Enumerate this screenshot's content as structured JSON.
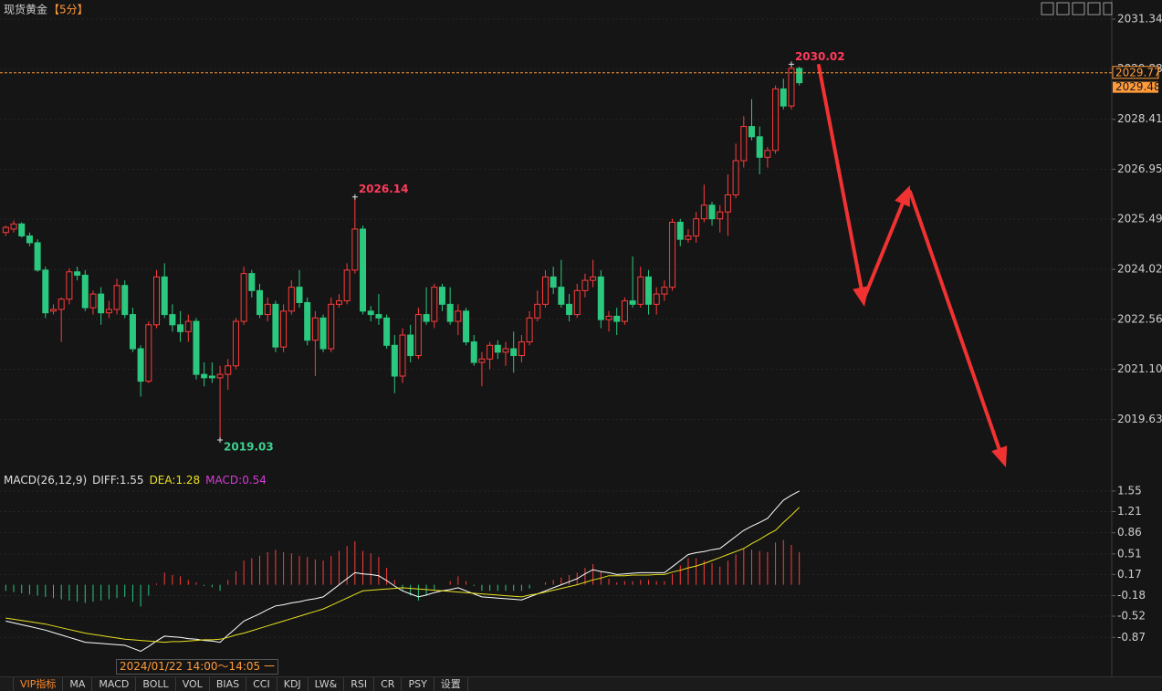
{
  "window": {
    "title": "现货黄金",
    "period": "【5分】",
    "date_label": "2024/01/22 14:00～14:05 一",
    "tabs": [
      "VIP指标",
      "MA",
      "MACD",
      "BOLL",
      "VOL",
      "BIAS",
      "CCI",
      "KDJ",
      "LW&",
      "RSI",
      "CR",
      "PSY",
      "设置"
    ]
  },
  "chart_data": {
    "type": "candlestick",
    "up_color": "#ff3b3b",
    "down_color": "#2bc97f",
    "open": [
      2025.1,
      2025.2,
      2025.35,
      2025.0,
      2024.8,
      2024.0,
      2022.8,
      2022.85,
      2023.15,
      2023.95,
      2023.85,
      2022.9,
      2023.3,
      2022.75,
      2022.85,
      2023.55,
      2022.7,
      2021.7,
      2020.75,
      2022.4,
      2023.8,
      2022.7,
      2022.4,
      2022.2,
      2022.5,
      2020.95,
      2020.9,
      2020.85,
      2020.95,
      2021.2,
      2022.5,
      2023.9,
      2023.4,
      2022.7,
      2023.0,
      2021.75,
      2022.8,
      2023.5,
      2023.05,
      2021.95,
      2022.6,
      2021.7,
      2023.0,
      2023.1,
      2024.0,
      2025.2,
      2022.8,
      2022.7,
      2022.6,
      2021.8,
      2020.9,
      2022.1,
      2021.5,
      2022.7,
      2022.5,
      2023.5,
      2023.0,
      2022.5,
      2022.8,
      2021.9,
      2021.3,
      2021.4,
      2021.8,
      2021.6,
      2021.7,
      2021.5,
      2021.9,
      2022.6,
      2023.0,
      2023.8,
      2023.5,
      2023.0,
      2022.7,
      2023.4,
      2023.7,
      2023.8,
      2022.55,
      2022.65,
      2022.5,
      2023.1,
      2023.0,
      2023.8,
      2023.0,
      2023.3,
      2023.5,
      2025.4,
      2024.9,
      2025.0,
      2025.5,
      2025.9,
      2025.5,
      2025.7,
      2026.2,
      2027.2,
      2028.2,
      2027.9,
      2027.3,
      2027.5,
      2029.3,
      2028.8,
      2029.9
    ],
    "high": [
      2025.3,
      2025.45,
      2025.4,
      2025.1,
      2024.9,
      2024.1,
      2023.0,
      2023.2,
      2024.05,
      2024.1,
      2024.0,
      2023.4,
      2023.5,
      2023.1,
      2023.75,
      2023.7,
      2022.9,
      2021.8,
      2022.5,
      2024.0,
      2024.2,
      2023.0,
      2022.8,
      2022.7,
      2022.6,
      2021.3,
      2021.3,
      2021.2,
      2021.4,
      2022.6,
      2024.1,
      2024.0,
      2023.6,
      2023.2,
      2023.1,
      2023.0,
      2023.7,
      2024.0,
      2023.2,
      2022.8,
      2022.7,
      2023.2,
      2023.3,
      2024.2,
      2026.14,
      2025.3,
      2022.95,
      2023.3,
      2022.7,
      2022.1,
      2022.3,
      2022.4,
      2022.9,
      2023.5,
      2023.6,
      2023.6,
      2023.5,
      2023.0,
      2022.9,
      2022.1,
      2021.6,
      2021.9,
      2021.95,
      2021.9,
      2022.2,
      2022.1,
      2022.8,
      2023.4,
      2024.0,
      2024.1,
      2024.3,
      2023.3,
      2023.6,
      2023.9,
      2024.3,
      2024.0,
      2022.8,
      2022.9,
      2023.2,
      2024.4,
      2024.1,
      2024.0,
      2023.5,
      2023.7,
      2025.5,
      2025.5,
      2025.2,
      2025.7,
      2026.5,
      2026.0,
      2025.9,
      2026.8,
      2027.7,
      2028.5,
      2029.0,
      2028.2,
      2027.6,
      2029.4,
      2029.6,
      2030.02,
      2029.95
    ],
    "low": [
      2025.0,
      2025.1,
      2024.95,
      2024.7,
      2023.95,
      2022.6,
      2022.7,
      2021.9,
      2023.0,
      2023.7,
      2022.8,
      2022.7,
      2022.4,
      2022.6,
      2022.7,
      2022.6,
      2021.6,
      2020.3,
      2020.7,
      2022.3,
      2022.6,
      2022.2,
      2021.9,
      2021.9,
      2020.8,
      2020.6,
      2020.7,
      2019.03,
      2020.5,
      2021.1,
      2022.4,
      2023.2,
      2022.6,
      2022.5,
      2021.6,
      2021.6,
      2022.7,
      2022.9,
      2021.8,
      2020.9,
      2021.6,
      2021.6,
      2022.9,
      2023.0,
      2023.9,
      2022.7,
      2022.5,
      2022.4,
      2021.7,
      2020.4,
      2020.7,
      2021.3,
      2021.4,
      2022.4,
      2022.3,
      2022.8,
      2022.4,
      2022.1,
      2021.8,
      2021.2,
      2020.6,
      2021.1,
      2021.4,
      2021.2,
      2021.0,
      2021.3,
      2021.8,
      2022.5,
      2022.9,
      2023.3,
      2022.9,
      2022.5,
      2022.6,
      2023.2,
      2023.5,
      2022.3,
      2022.2,
      2022.1,
      2022.4,
      2022.9,
      2022.9,
      2022.7,
      2022.7,
      2023.1,
      2023.4,
      2024.7,
      2024.8,
      2024.8,
      2025.4,
      2025.3,
      2025.1,
      2025.0,
      2026.1,
      2027.0,
      2027.8,
      2026.8,
      2027.0,
      2027.4,
      2028.7,
      2028.7,
      2029.4
    ],
    "close": [
      2025.25,
      2025.35,
      2025.0,
      2024.8,
      2024.0,
      2022.75,
      2022.85,
      2023.15,
      2023.95,
      2023.85,
      2022.9,
      2023.3,
      2022.75,
      2022.85,
      2023.55,
      2022.7,
      2021.7,
      2020.75,
      2022.4,
      2023.8,
      2022.7,
      2022.4,
      2022.2,
      2022.5,
      2020.95,
      2020.85,
      2020.85,
      2020.95,
      2021.2,
      2022.5,
      2023.9,
      2023.4,
      2022.7,
      2023.0,
      2021.75,
      2022.8,
      2023.5,
      2023.05,
      2021.95,
      2022.6,
      2021.7,
      2023.0,
      2023.1,
      2024.0,
      2025.2,
      2022.8,
      2022.7,
      2022.6,
      2021.8,
      2020.9,
      2022.1,
      2021.5,
      2022.7,
      2022.5,
      2023.5,
      2023.0,
      2022.5,
      2022.8,
      2021.9,
      2021.3,
      2021.4,
      2021.8,
      2021.6,
      2021.7,
      2021.5,
      2021.9,
      2022.6,
      2023.0,
      2023.8,
      2023.5,
      2023.0,
      2022.7,
      2023.4,
      2023.7,
      2023.8,
      2022.55,
      2022.65,
      2022.5,
      2023.1,
      2023.0,
      2023.8,
      2023.0,
      2023.3,
      2023.5,
      2025.4,
      2024.9,
      2025.0,
      2025.5,
      2025.9,
      2025.5,
      2025.7,
      2026.2,
      2027.2,
      2028.2,
      2027.9,
      2027.3,
      2027.5,
      2029.3,
      2028.8,
      2029.9,
      2029.48
    ],
    "ylim": [
      2018.15,
      2031.9
    ],
    "yticks": [
      2031.34,
      2029.88,
      2028.41,
      2026.95,
      2025.49,
      2024.02,
      2022.56,
      {
        "value": 2021.1,
        "label": "2021.10"
      },
      2019.63
    ],
    "price_line": 2029.77,
    "price_line_color": "#ff9a3a",
    "annotations": [
      {
        "at": 99,
        "value": 2030.02,
        "color": "#ff3b5c"
      },
      {
        "at": 44,
        "value": 2026.14,
        "color": "#ff3b5c"
      },
      {
        "at": 27,
        "value": 2019.03,
        "color": "#3ecf8e"
      }
    ],
    "macd": {
      "type": "macd",
      "title": "MACD(26,12,9)",
      "separator": ":",
      "ylim": [
        -1.5,
        1.67
      ],
      "yticks": [
        1.55,
        1.21,
        0.86,
        0.51,
        0.17,
        -0.18,
        -0.52,
        -0.87
      ],
      "up_color": "#ff3b3b",
      "down_color": "#2bc97f",
      "series": [
        {
          "name": "DIFF",
          "color": "#ffffff",
          "values": [
            -0.6,
            -0.63,
            -0.66,
            -0.69,
            -0.72,
            -0.75,
            -0.79,
            -0.83,
            -0.87,
            -0.91,
            -0.95,
            -0.96,
            -0.97,
            -0.98,
            -0.99,
            -1.0,
            -1.05,
            -1.1,
            -1.02,
            -0.93,
            -0.85,
            -0.86,
            -0.87,
            -0.89,
            -0.9,
            -0.92,
            -0.93,
            -0.95,
            -0.83,
            -0.72,
            -0.6,
            -0.54,
            -0.48,
            -0.41,
            -0.35,
            -0.33,
            -0.3,
            -0.28,
            -0.25,
            -0.23,
            -0.2,
            -0.1,
            0.0,
            0.1,
            0.2,
            0.18,
            0.17,
            0.15,
            0.07,
            -0.02,
            -0.1,
            -0.15,
            -0.2,
            -0.17,
            -0.13,
            -0.1,
            -0.08,
            -0.05,
            -0.1,
            -0.15,
            -0.2,
            -0.21,
            -0.22,
            -0.23,
            -0.24,
            -0.25,
            -0.2,
            -0.15,
            -0.1,
            -0.05,
            0.0,
            0.05,
            0.1,
            0.18,
            0.25,
            0.22,
            0.2,
            0.17,
            0.18,
            0.19,
            0.2,
            0.2,
            0.2,
            0.2,
            0.3,
            0.4,
            0.5,
            0.53,
            0.55,
            0.58,
            0.6,
            0.7,
            0.8,
            0.9,
            0.97,
            1.03,
            1.1,
            1.25,
            1.4,
            1.48,
            1.55
          ]
        },
        {
          "name": "DEA",
          "color": "#e8e020",
          "values": [
            -0.55,
            -0.57,
            -0.59,
            -0.61,
            -0.63,
            -0.65,
            -0.68,
            -0.71,
            -0.74,
            -0.77,
            -0.8,
            -0.82,
            -0.84,
            -0.86,
            -0.88,
            -0.9,
            -0.91,
            -0.92,
            -0.93,
            -0.94,
            -0.95,
            -0.94,
            -0.94,
            -0.93,
            -0.92,
            -0.91,
            -0.91,
            -0.9,
            -0.87,
            -0.83,
            -0.8,
            -0.76,
            -0.72,
            -0.68,
            -0.64,
            -0.6,
            -0.56,
            -0.52,
            -0.48,
            -0.44,
            -0.4,
            -0.34,
            -0.28,
            -0.22,
            -0.16,
            -0.1,
            -0.09,
            -0.08,
            -0.07,
            -0.06,
            -0.05,
            -0.06,
            -0.07,
            -0.08,
            -0.09,
            -0.1,
            -0.11,
            -0.12,
            -0.13,
            -0.14,
            -0.15,
            -0.16,
            -0.17,
            -0.18,
            -0.19,
            -0.2,
            -0.17,
            -0.15,
            -0.12,
            -0.09,
            -0.06,
            -0.03,
            0.0,
            0.04,
            0.08,
            0.11,
            0.15,
            0.15,
            0.15,
            0.16,
            0.16,
            0.16,
            0.17,
            0.17,
            0.21,
            0.24,
            0.28,
            0.31,
            0.35,
            0.4,
            0.45,
            0.5,
            0.55,
            0.6,
            0.68,
            0.75,
            0.83,
            0.9,
            1.03,
            1.15,
            1.28
          ]
        },
        {
          "name": "MACD",
          "color": "#d63cd6",
          "values": [
            -0.1,
            -0.12,
            -0.14,
            -0.16,
            -0.18,
            -0.2,
            -0.22,
            -0.24,
            -0.26,
            -0.28,
            -0.3,
            -0.28,
            -0.26,
            -0.24,
            -0.22,
            -0.2,
            -0.28,
            -0.36,
            -0.18,
            0.02,
            0.2,
            0.16,
            0.14,
            0.08,
            0.04,
            -0.02,
            -0.04,
            -0.1,
            0.08,
            0.22,
            0.4,
            0.44,
            0.48,
            0.54,
            0.58,
            0.54,
            0.52,
            0.48,
            0.46,
            0.42,
            0.4,
            0.48,
            0.56,
            0.64,
            0.72,
            0.56,
            0.52,
            0.46,
            0.28,
            0.08,
            -0.1,
            -0.18,
            -0.26,
            -0.18,
            -0.08,
            0.0,
            0.06,
            0.14,
            0.06,
            -0.02,
            -0.1,
            -0.1,
            -0.1,
            -0.1,
            -0.1,
            -0.1,
            -0.06,
            0.0,
            0.04,
            0.08,
            0.12,
            0.16,
            0.2,
            0.28,
            0.34,
            0.22,
            0.1,
            0.04,
            0.06,
            0.06,
            0.08,
            0.08,
            0.06,
            0.06,
            0.18,
            0.32,
            0.44,
            0.44,
            0.4,
            0.36,
            0.3,
            0.4,
            0.5,
            0.6,
            0.58,
            0.56,
            0.54,
            0.7,
            0.74,
            0.66,
            0.54
          ]
        }
      ]
    }
  }
}
